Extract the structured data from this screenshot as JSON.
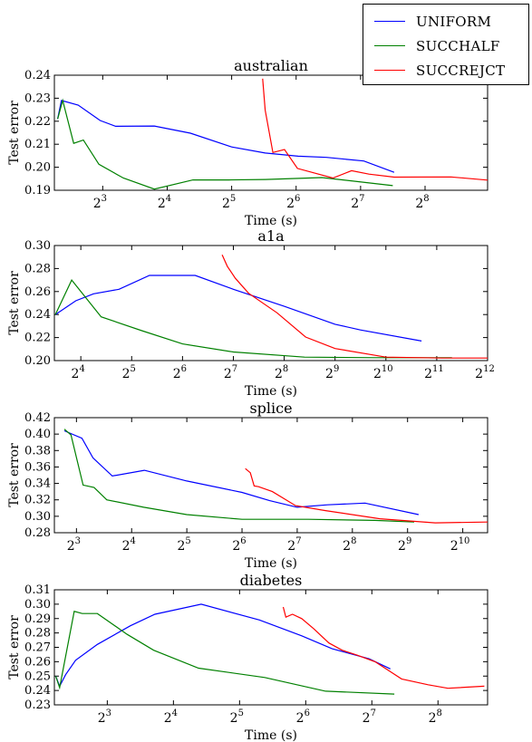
{
  "chart_data": [
    {
      "type": "line",
      "title": "australian",
      "xlabel": "Time (s)",
      "ylabel": "Test error",
      "x_scale": "log2",
      "xlim_log2": [
        2.25,
        8.97
      ],
      "xticks": [
        3,
        4,
        5,
        6,
        7,
        8
      ],
      "xtick_base": "2",
      "ylim": [
        0.19,
        0.24
      ],
      "yticks": [
        "0.19",
        "0.20",
        "0.21",
        "0.22",
        "0.23",
        "0.24"
      ],
      "series": [
        {
          "name": "UNIFORM",
          "color": "#0000ff",
          "x_log2": [
            2.3,
            2.36,
            2.62,
            2.96,
            3.2,
            3.8,
            4.36,
            5.0,
            5.52,
            6.03,
            6.47,
            7.05,
            7.52
          ],
          "y": [
            0.221,
            0.229,
            0.227,
            0.2203,
            0.2178,
            0.2179,
            0.2148,
            0.2088,
            0.2062,
            0.2048,
            0.2043,
            0.2027,
            0.1978
          ]
        },
        {
          "name": "SUCCHALF",
          "color": "#008000",
          "x_log2": [
            2.3,
            2.38,
            2.55,
            2.7,
            2.94,
            3.32,
            3.8,
            4.4,
            4.96,
            5.52,
            6.4,
            7.1,
            7.5
          ],
          "y": [
            0.221,
            0.229,
            0.2104,
            0.2118,
            0.2013,
            0.1953,
            0.1905,
            0.1945,
            0.1945,
            0.1947,
            0.1955,
            0.1933,
            0.192
          ]
        },
        {
          "name": "SUCCREJCT",
          "color": "#ff0000",
          "x_log2": [
            5.48,
            5.52,
            5.64,
            5.82,
            6.02,
            6.57,
            6.86,
            7.13,
            7.52,
            8.4,
            8.97
          ],
          "y": [
            0.2385,
            0.2248,
            0.2064,
            0.2077,
            0.1995,
            0.1953,
            0.1985,
            0.197,
            0.1957,
            0.1958,
            0.1944
          ]
        }
      ]
    },
    {
      "type": "line",
      "title": "a1a",
      "xlabel": "Time (s)",
      "ylabel": "Test error",
      "x_scale": "log2",
      "xlim_log2": [
        3.48,
        12.0
      ],
      "xticks": [
        4,
        5,
        6,
        7,
        8,
        9,
        10,
        11,
        12
      ],
      "xtick_base": "2",
      "ylim": [
        0.2,
        0.3
      ],
      "yticks": [
        "0.20",
        "0.22",
        "0.24",
        "0.26",
        "0.28",
        "0.30"
      ],
      "series": [
        {
          "name": "UNIFORM",
          "color": "#0000ff",
          "x_log2": [
            3.5,
            3.9,
            4.25,
            4.75,
            5.35,
            6.25,
            7.0,
            8.0,
            9.0,
            9.5,
            10.7
          ],
          "y": [
            0.24,
            0.252,
            0.258,
            0.262,
            0.274,
            0.274,
            0.262,
            0.2472,
            0.2316,
            0.2266,
            0.217
          ]
        },
        {
          "name": "SUCCHALF",
          "color": "#008000",
          "x_log2": [
            3.5,
            3.82,
            4.4,
            5.2,
            6.0,
            7.0,
            8.4,
            9.8,
            11.3
          ],
          "y": [
            0.24,
            0.27,
            0.238,
            0.226,
            0.2145,
            0.2075,
            0.203,
            0.2025,
            0.2025
          ]
        },
        {
          "name": "SUCCREJCT",
          "color": "#ff0000",
          "x_log2": [
            6.78,
            6.88,
            7.04,
            7.3,
            7.86,
            8.42,
            9.0,
            10.0,
            11.1,
            12.0
          ],
          "y": [
            0.292,
            0.282,
            0.2715,
            0.2585,
            0.2415,
            0.2205,
            0.2105,
            0.203,
            0.2022,
            0.2022
          ]
        }
      ]
    },
    {
      "type": "line",
      "title": "splice",
      "xlabel": "Time (s)",
      "ylabel": "Test error",
      "x_scale": "log2",
      "xlim_log2": [
        2.6,
        10.45
      ],
      "xticks": [
        3,
        4,
        5,
        6,
        7,
        8,
        9,
        10
      ],
      "xtick_base": "2",
      "ylim": [
        0.28,
        0.42
      ],
      "yticks": [
        "0.28",
        "0.30",
        "0.32",
        "0.34",
        "0.36",
        "0.38",
        "0.40",
        "0.42"
      ],
      "series": [
        {
          "name": "UNIFORM",
          "color": "#0000ff",
          "x_log2": [
            2.78,
            3.1,
            3.3,
            3.65,
            4.23,
            5.0,
            6.0,
            6.5,
            7.0,
            7.55,
            8.23,
            9.2
          ],
          "y": [
            0.404,
            0.395,
            0.371,
            0.349,
            0.356,
            0.343,
            0.329,
            0.319,
            0.311,
            0.314,
            0.316,
            0.302
          ]
        },
        {
          "name": "SUCCHALF",
          "color": "#008000",
          "x_log2": [
            2.78,
            2.9,
            3.12,
            3.32,
            3.55,
            4.22,
            5.0,
            6.0,
            7.2,
            8.4,
            9.12
          ],
          "y": [
            0.406,
            0.399,
            0.338,
            0.335,
            0.32,
            0.311,
            0.302,
            0.2963,
            0.2963,
            0.295,
            0.293
          ]
        },
        {
          "name": "SUCCREJCT",
          "color": "#ff0000",
          "x_log2": [
            6.06,
            6.15,
            6.22,
            6.3,
            6.55,
            6.97,
            7.5,
            8.5,
            9.5,
            10.45
          ],
          "y": [
            0.358,
            0.353,
            0.337,
            0.336,
            0.33,
            0.313,
            0.307,
            0.297,
            0.292,
            0.293
          ]
        }
      ]
    },
    {
      "type": "line",
      "title": "diabetes",
      "xlabel": "Time (s)",
      "ylabel": "Test error",
      "x_scale": "log2",
      "xlim_log2": [
        2.2,
        8.75
      ],
      "xticks": [
        3,
        4,
        5,
        6,
        7,
        8
      ],
      "xtick_base": "2",
      "ylim": [
        0.23,
        0.31
      ],
      "yticks": [
        "0.23",
        "0.24",
        "0.25",
        "0.26",
        "0.27",
        "0.28",
        "0.29",
        "0.30",
        "0.31"
      ],
      "series": [
        {
          "name": "UNIFORM",
          "color": "#0000ff",
          "x_log2": [
            2.22,
            2.28,
            2.37,
            2.52,
            2.85,
            3.35,
            3.72,
            4.42,
            5.3,
            5.94,
            6.4,
            6.96,
            7.28
          ],
          "y": [
            0.25,
            0.243,
            0.251,
            0.261,
            0.272,
            0.285,
            0.293,
            0.3,
            0.289,
            0.278,
            0.269,
            0.262,
            0.255
          ]
        },
        {
          "name": "SUCCHALF",
          "color": "#008000",
          "x_log2": [
            2.22,
            2.28,
            2.5,
            2.62,
            2.85,
            3.3,
            3.7,
            4.38,
            5.38,
            6.3,
            7.34
          ],
          "y": [
            0.25,
            0.242,
            0.295,
            0.2935,
            0.2935,
            0.279,
            0.268,
            0.2555,
            0.249,
            0.2395,
            0.2375
          ]
        },
        {
          "name": "SUCCREJCT",
          "color": "#ff0000",
          "x_log2": [
            5.66,
            5.7,
            5.8,
            5.94,
            6.12,
            6.35,
            6.55,
            6.78,
            7.05,
            7.45,
            7.85,
            8.15,
            8.7
          ],
          "y": [
            0.298,
            0.291,
            0.293,
            0.29,
            0.283,
            0.273,
            0.268,
            0.2645,
            0.26,
            0.248,
            0.244,
            0.2415,
            0.243
          ]
        }
      ]
    }
  ],
  "legend": {
    "entries": [
      {
        "label": "UNIFORM",
        "color": "#0000ff"
      },
      {
        "label": "SUCCHALF",
        "color": "#008000"
      },
      {
        "label": "SUCCREJCT",
        "color": "#ff0000"
      }
    ]
  }
}
